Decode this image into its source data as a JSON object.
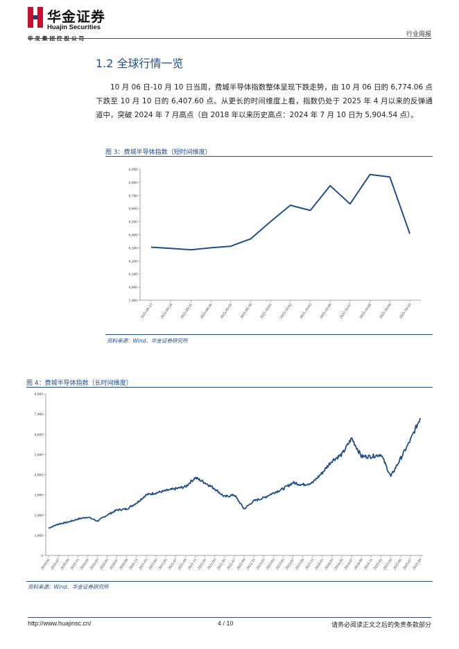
{
  "header": {
    "logo_cn": "华金证券",
    "logo_en": "Huajin Securities",
    "logo_sub": "华发集团控股公司",
    "report_type": "行业周报"
  },
  "section": {
    "title": "1.2 全球行情一览",
    "paragraph": "10 月 06 日-10 月 10 日当周，费城半导体指数整体呈现下跌走势，由 10 月 06 日的 6,774.06 点下跌至 10 月 10 日的 6,407.60 点。从更长的时间维度上看，指数仍处于 2025 年 4 月以来的反弹通道中，突破 2024 年 7 月高点（自 2018 年以来历史高点：2024 年 7 月 10 日为 5,904.54 点）。"
  },
  "figure3": {
    "title": "图 3：费城半导体指数（短时间维度）",
    "source": "资料来源：Wind、华金证券研究所"
  },
  "figure4": {
    "title": "图 4：费城半导体指数（长时间维度）",
    "source": "资料来源：Wind、华金证券研究所"
  },
  "footer": {
    "url": "http://www.huajinsc.cn/",
    "page": "4 / 10",
    "disclaimer": "请务必阅读正文之后的免责条款部分"
  },
  "colors": {
    "accent": "#1f4e8c",
    "line": "#1f4e8c"
  },
  "chart_data": [
    {
      "type": "line",
      "title": "",
      "categories": [
        "2025-09-23",
        "2025-09-24",
        "2025-09-25",
        "2025-09-26",
        "2025-09-29",
        "2025-09-30",
        "2025-10-01",
        "2025-10-02",
        "2025-10-03",
        "2025-10-06",
        "2025-10-07",
        "2025-10-08",
        "2025-10-09",
        "2025-10-10"
      ],
      "ytick_labels": [
        "5,900",
        "6,000",
        "6,100",
        "6,200",
        "6,300",
        "6,400",
        "6,500",
        "6,600",
        "6,700",
        "6,800",
        "6,900"
      ],
      "series": [
        {
          "values": [
            6305,
            6295,
            6285,
            6300,
            6312,
            6368,
            6500,
            6625,
            6585,
            6774,
            6635,
            6860,
            6840,
            6408
          ]
        }
      ],
      "ylim": [
        5900,
        6900
      ],
      "grid": false
    },
    {
      "type": "line",
      "title": "",
      "categories": [
        "2019-05",
        "2019-07",
        "2019-09",
        "2019-11",
        "2020-01",
        "2020-03",
        "2020-05",
        "2020-07",
        "2020-09",
        "2020-11",
        "2021-01",
        "2021-03",
        "2021-05",
        "2021-07",
        "2021-09",
        "2021-11",
        "2022-01",
        "2022-03",
        "2022-05",
        "2022-07",
        "2022-09",
        "2022-11",
        "2023-01",
        "2023-03",
        "2023-05",
        "2023-07",
        "2023-09",
        "2023-11",
        "2024-01",
        "2024-03",
        "2024-05",
        "2024-07",
        "2024-09",
        "2024-11",
        "2025-01",
        "2025-03",
        "2025-05",
        "2025-07",
        "2025-09"
      ],
      "ytick_labels": [
        "0",
        "1,000",
        "2,000",
        "3,000",
        "4,000",
        "5,000",
        "6,000",
        "7,000",
        "8,000"
      ],
      "series": [
        {
          "values": [
            1350,
            1550,
            1650,
            1800,
            1900,
            1700,
            2000,
            2250,
            2300,
            2600,
            3000,
            3100,
            3200,
            3300,
            3400,
            3850,
            3600,
            3300,
            2900,
            3000,
            2300,
            2700,
            2850,
            3100,
            3300,
            3600,
            3500,
            3600,
            4100,
            4700,
            5000,
            5800,
            4900,
            4900,
            5000,
            3900,
            4800,
            5700,
            6800
          ]
        }
      ],
      "ylim": [
        0,
        8000
      ],
      "grid": false
    }
  ]
}
